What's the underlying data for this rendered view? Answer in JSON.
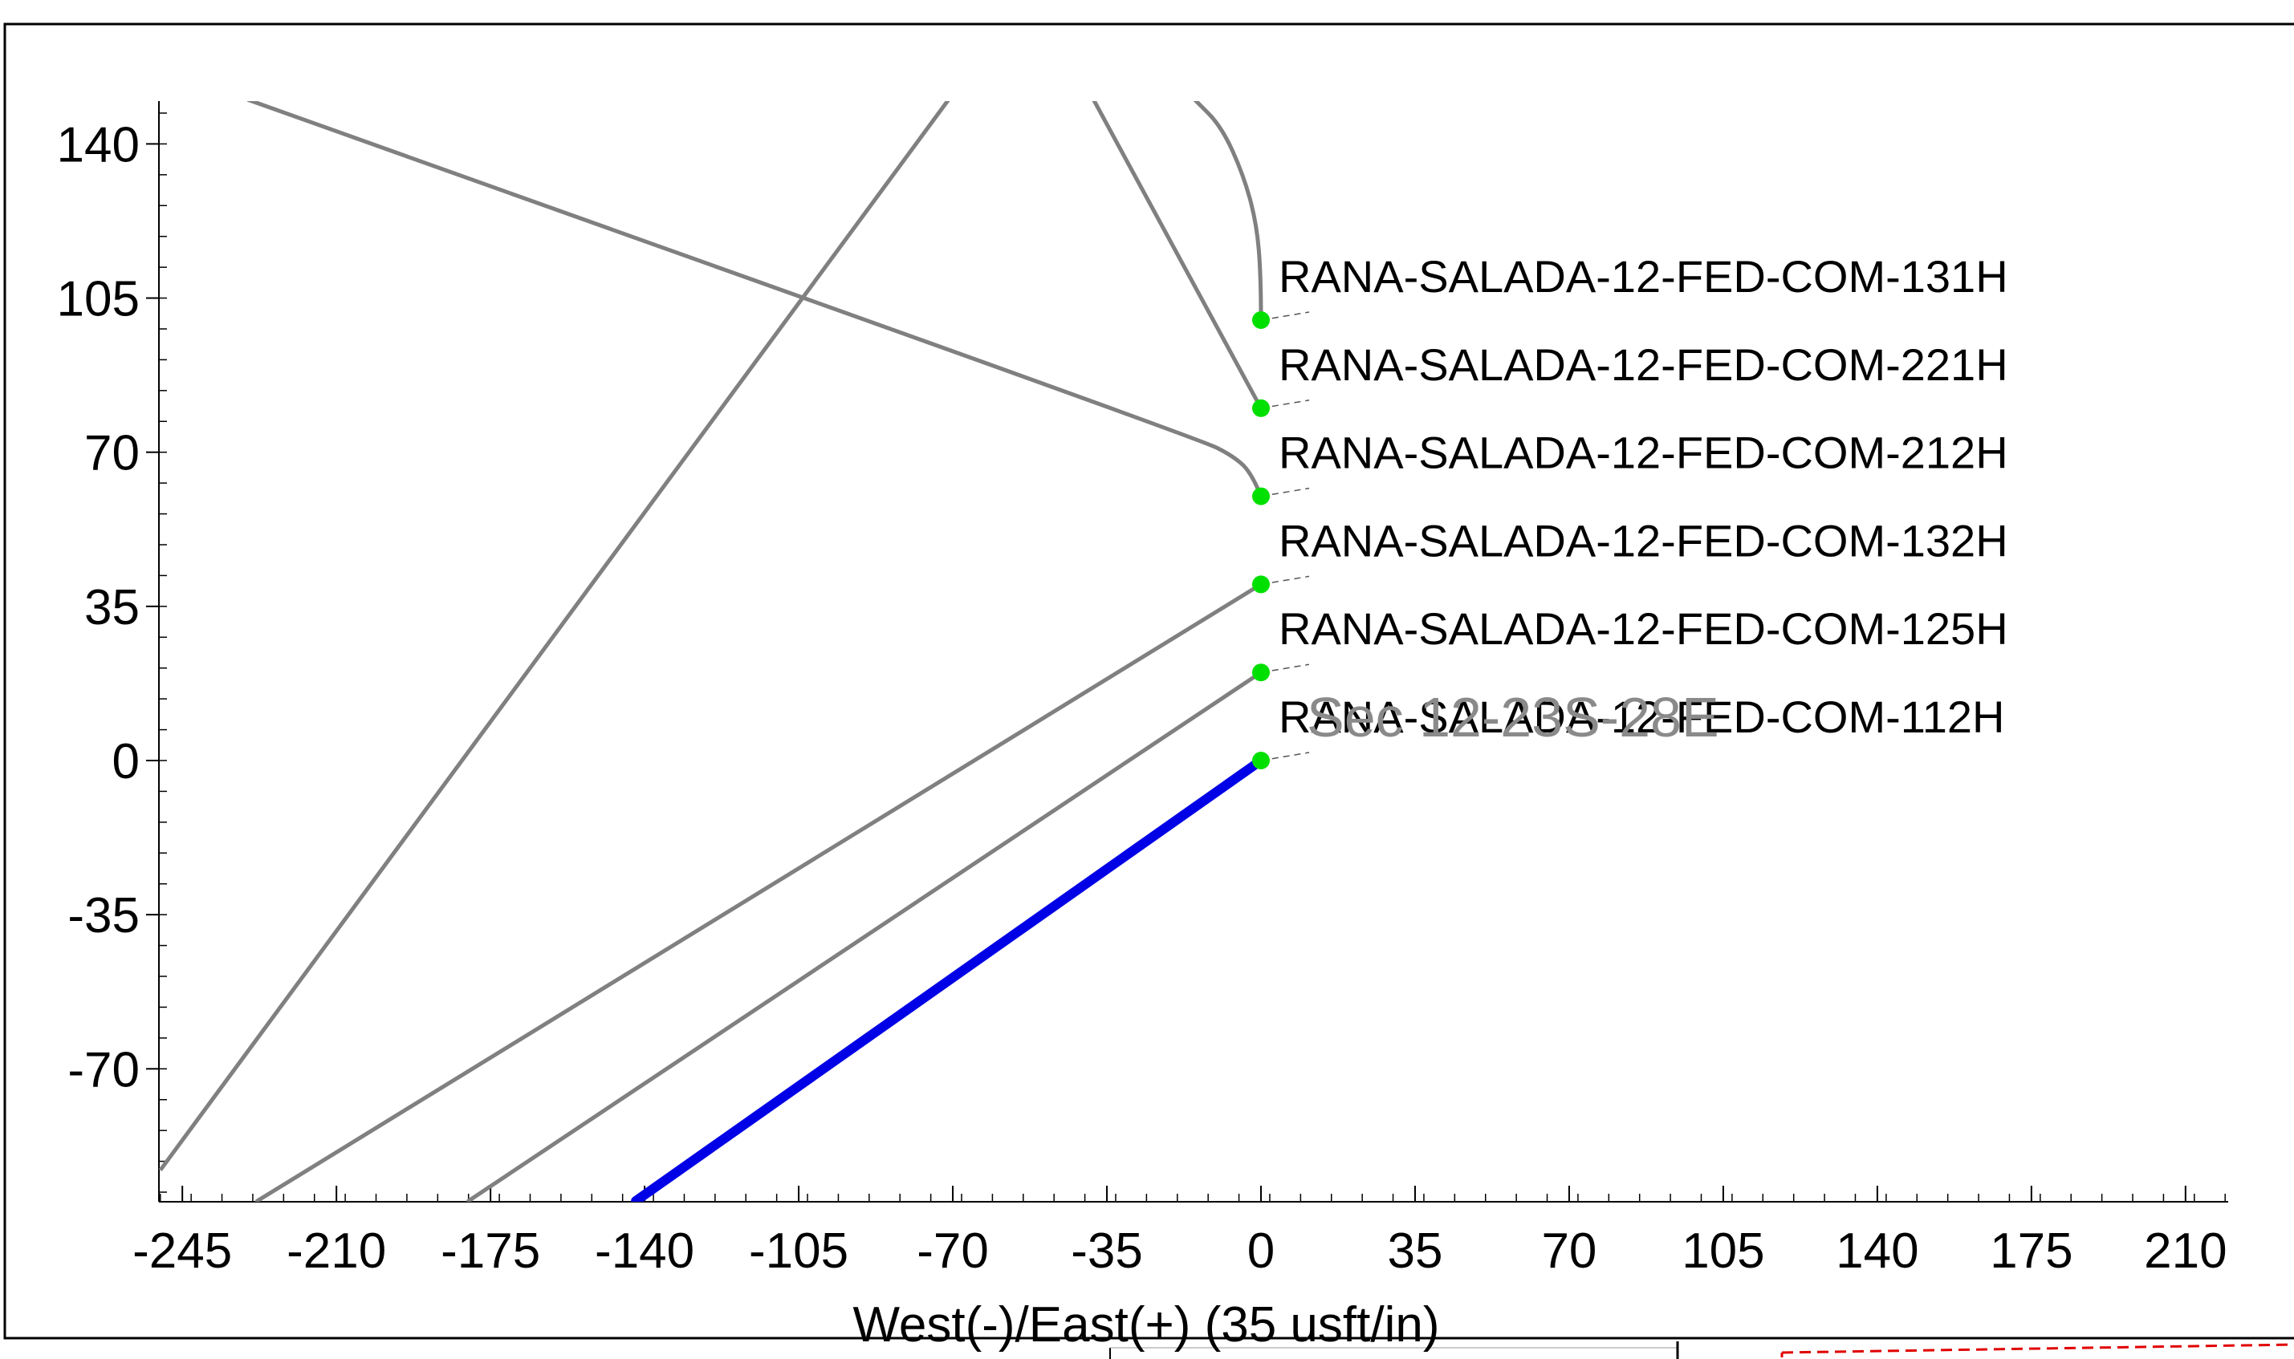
{
  "chart_data": {
    "type": "line",
    "xlabel": "West(-)/East(+) (35 usft/in)",
    "ylabel": "",
    "xlim": [
      -250,
      220
    ],
    "ylim": [
      -100,
      150
    ],
    "x_ticks": [
      -245,
      -210,
      -175,
      -140,
      -105,
      -70,
      -35,
      0,
      35,
      70,
      105,
      140,
      175,
      210
    ],
    "x_tick_labels": [
      "-245",
      "-210",
      "-175",
      "-140",
      "-105",
      "-70",
      "-35",
      "0",
      "35",
      "70",
      "105",
      "140",
      "175",
      "210"
    ],
    "y_ticks": [
      140,
      105,
      70,
      35,
      0,
      -35,
      -70
    ],
    "y_tick_labels": [
      "140",
      "105",
      "70",
      "35",
      "0",
      "-35",
      "-70"
    ],
    "section_label": "Sec 12-23S-28E",
    "wells": [
      {
        "name": "RANA-SALADA-12-FED-COM-131H",
        "surface": [
          0,
          100
        ],
        "color": "#808080",
        "path": [
          [
            0,
            100
          ],
          [
            0,
            110
          ],
          [
            -1,
            122
          ],
          [
            -4,
            133
          ],
          [
            -9,
            144
          ],
          [
            -15,
            150
          ]
        ]
      },
      {
        "name": "RANA-SALADA-12-FED-COM-221H",
        "surface": [
          0,
          80
        ],
        "color": "#808080",
        "path": [
          [
            0,
            80
          ],
          [
            -38,
            150
          ]
        ]
      },
      {
        "name": "RANA-SALADA-12-FED-COM-212H",
        "surface": [
          0,
          60
        ],
        "color": "#808080",
        "path": [
          [
            0,
            60
          ],
          [
            -2,
            65
          ],
          [
            -6,
            69
          ],
          [
            -14,
            73
          ],
          [
            -230,
            150
          ]
        ]
      },
      {
        "name": "RANA-SALADA-12-FED-COM-132H",
        "surface": [
          0,
          40
        ],
        "color": "#808080",
        "path": [
          [
            0,
            40
          ],
          [
            -228,
            -100
          ]
        ]
      },
      {
        "name": "RANA-SALADA-12-FED-COM-125H",
        "surface": [
          0,
          20
        ],
        "color": "#808080",
        "path": [
          [
            0,
            20
          ],
          [
            -180,
            -100
          ]
        ]
      },
      {
        "name": "RANA-SALADA-12-FED-COM-112H",
        "surface": [
          0,
          0
        ],
        "color": "#0000e6",
        "path": [
          [
            0,
            0
          ],
          [
            -142,
            -100
          ]
        ]
      }
    ],
    "offset_well": {
      "color": "#808080",
      "path": [
        [
          -71,
          150
        ],
        [
          -250,
          -93
        ]
      ]
    },
    "grid": false
  },
  "colors": {
    "marker": "#00e000",
    "highlight": "#0000e6",
    "offset": "#808080",
    "frame": "#000000"
  }
}
